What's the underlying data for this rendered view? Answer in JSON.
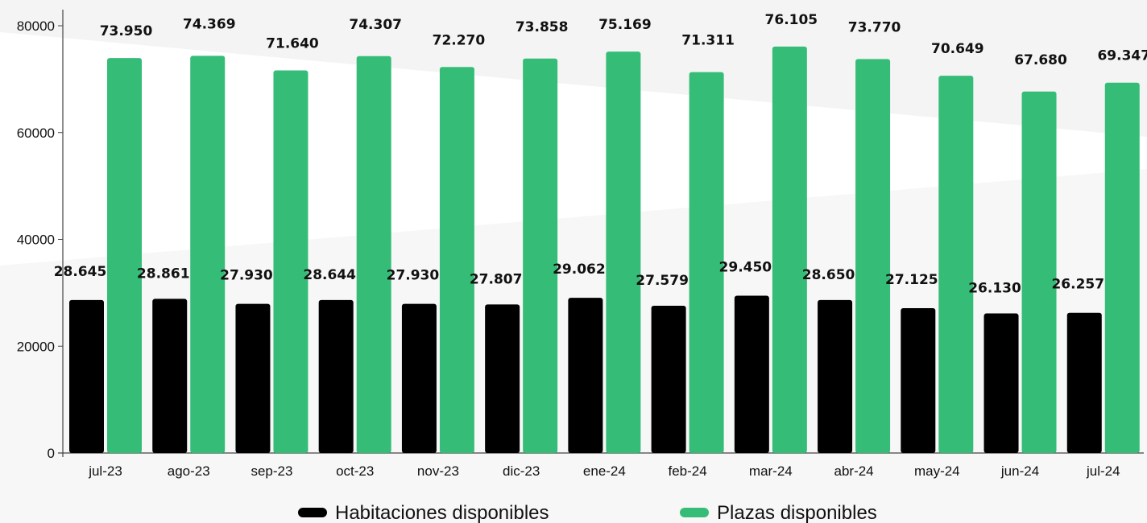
{
  "chart_data": {
    "type": "bar",
    "categories": [
      "jul-23",
      "ago-23",
      "sep-23",
      "oct-23",
      "nov-23",
      "dic-23",
      "ene-24",
      "feb-24",
      "mar-24",
      "abr-24",
      "may-24",
      "jun-24",
      "jul-24"
    ],
    "series": [
      {
        "name": "Habitaciones disponibles",
        "color": "#000000",
        "values": [
          28645,
          28861,
          27930,
          28644,
          27930,
          27807,
          29062,
          27579,
          29450,
          28650,
          27125,
          26130,
          26257
        ],
        "labels": [
          "28.645",
          "28.861",
          "27.930",
          "28.644",
          "27.930",
          "27.807",
          "29.062",
          "27.579",
          "29.450",
          "28.650",
          "27.125",
          "26.130",
          "26.257"
        ]
      },
      {
        "name": "Plazas disponibles",
        "color": "#35bd78",
        "values": [
          73950,
          74369,
          71640,
          74307,
          72270,
          73858,
          75169,
          71311,
          76105,
          73770,
          70649,
          67680,
          69347
        ],
        "labels": [
          "73.950",
          "74.369",
          "71.640",
          "74.307",
          "72.270",
          "73.858",
          "75.169",
          "71.311",
          "76.105",
          "73.770",
          "70.649",
          "67.680",
          "69.347"
        ]
      }
    ],
    "title": "",
    "xlabel": "",
    "ylabel": "",
    "ylim": [
      0,
      80000
    ],
    "yticks": [
      "0",
      "20000",
      "40000",
      "60000",
      "80000"
    ],
    "grid": false,
    "legend_position": "bottom"
  }
}
